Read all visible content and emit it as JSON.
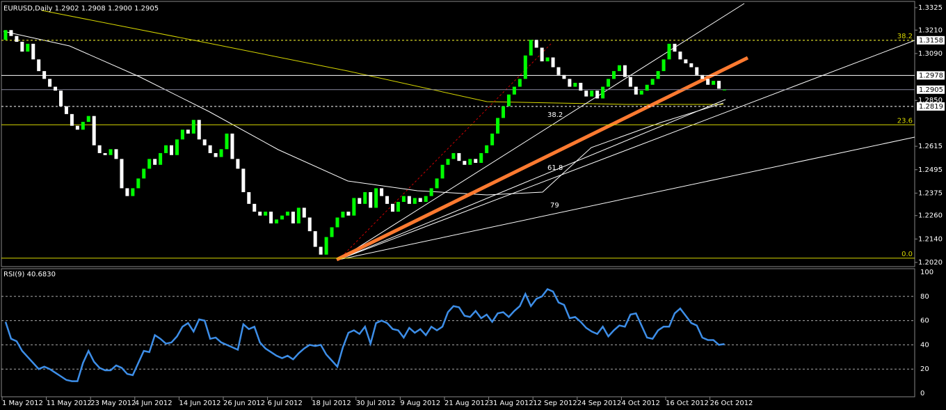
{
  "chart_data": {
    "type": "candlestick",
    "title": "EURUSD,Daily  1.2902 1.2908 1.2900 1.2905",
    "categories": [
      "1 May 2012",
      null,
      null,
      null,
      null,
      null,
      null,
      null,
      "11 May 2012",
      null,
      null,
      null,
      null,
      null,
      null,
      null,
      "23 May 2012",
      null,
      null,
      null,
      null,
      null,
      null,
      null,
      "4 Jun 2012",
      null,
      null,
      null,
      null,
      null,
      null,
      null,
      "14 Jun 2012",
      null,
      null,
      null,
      null,
      null,
      null,
      null,
      "26 Jun 2012",
      null,
      null,
      null,
      null,
      null,
      null,
      null,
      "6 Jul 2012",
      null,
      null,
      null,
      null,
      null,
      null,
      null,
      "18 Jul 2012",
      null,
      null,
      null,
      null,
      null,
      null,
      null,
      "30 Jul 2012",
      null,
      null,
      null,
      null,
      null,
      null,
      null,
      "9 Aug 2012",
      null,
      null,
      null,
      null,
      null,
      null,
      null,
      "21 Aug 2012",
      null,
      null,
      null,
      null,
      null,
      null,
      null,
      "31 Aug 2012",
      null,
      null,
      null,
      null,
      null,
      null,
      null,
      "12 Sep 2012",
      null,
      null,
      null,
      null,
      null,
      null,
      null,
      "24 Sep 2012",
      null,
      null,
      null,
      null,
      null,
      null,
      null,
      "4 Oct 2012",
      null,
      null,
      null,
      null,
      null,
      null,
      null,
      "16 Oct 2012",
      null,
      null,
      null,
      null,
      null,
      null,
      null,
      "26 Oct 2012",
      null,
      null
    ],
    "open": [
      1.316,
      1.321,
      1.318,
      1.315,
      1.31,
      1.314,
      1.306,
      1.3,
      1.296,
      1.292,
      1.29,
      1.282,
      1.278,
      1.272,
      1.27,
      1.274,
      1.277,
      1.262,
      1.258,
      1.257,
      1.26,
      1.255,
      1.24,
      1.236,
      1.24,
      1.245,
      1.25,
      1.255,
      1.252,
      1.258,
      1.262,
      1.257,
      1.265,
      1.27,
      1.268,
      1.275,
      1.265,
      1.262,
      1.258,
      1.256,
      1.26,
      1.268,
      1.255,
      1.25,
      1.238,
      1.232,
      1.228,
      1.226,
      1.228,
      1.222,
      1.224,
      1.226,
      1.228,
      1.222,
      1.23,
      1.225,
      1.218,
      1.21,
      1.206,
      1.215,
      1.22,
      1.225,
      1.228,
      1.226,
      1.235,
      1.232,
      1.238,
      1.23,
      1.24,
      1.236,
      1.232,
      1.228,
      1.233,
      1.236,
      1.232,
      1.235,
      1.233,
      1.236,
      1.24,
      1.245,
      1.252,
      1.255,
      1.258,
      1.254,
      1.252,
      1.255,
      1.253,
      1.258,
      1.262,
      1.268,
      1.276,
      1.282,
      1.288,
      1.292,
      1.296,
      1.308,
      1.316,
      1.312,
      1.305,
      1.307,
      1.302,
      1.298,
      1.296,
      1.292,
      1.294,
      1.29,
      1.287,
      1.29,
      1.286,
      1.292,
      1.296,
      1.3,
      1.303,
      1.297,
      1.292,
      1.288,
      1.29,
      1.293,
      1.296,
      1.3,
      1.306,
      1.314,
      1.31,
      1.306,
      1.304,
      1.302,
      1.298,
      1.296,
      1.293,
      1.295,
      1.2902
    ],
    "close": [
      1.321,
      1.318,
      1.315,
      1.31,
      1.314,
      1.306,
      1.3,
      1.296,
      1.292,
      1.29,
      1.282,
      1.278,
      1.272,
      1.27,
      1.274,
      1.277,
      1.262,
      1.258,
      1.257,
      1.26,
      1.255,
      1.24,
      1.236,
      1.24,
      1.245,
      1.25,
      1.255,
      1.252,
      1.258,
      1.262,
      1.257,
      1.265,
      1.27,
      1.268,
      1.275,
      1.265,
      1.262,
      1.258,
      1.256,
      1.26,
      1.268,
      1.255,
      1.25,
      1.238,
      1.232,
      1.228,
      1.226,
      1.228,
      1.222,
      1.224,
      1.226,
      1.228,
      1.222,
      1.23,
      1.225,
      1.218,
      1.21,
      1.206,
      1.215,
      1.22,
      1.225,
      1.228,
      1.226,
      1.235,
      1.232,
      1.238,
      1.23,
      1.24,
      1.236,
      1.232,
      1.228,
      1.233,
      1.236,
      1.232,
      1.235,
      1.233,
      1.236,
      1.24,
      1.245,
      1.252,
      1.255,
      1.258,
      1.254,
      1.252,
      1.255,
      1.253,
      1.258,
      1.262,
      1.268,
      1.276,
      1.282,
      1.288,
      1.292,
      1.296,
      1.308,
      1.316,
      1.312,
      1.305,
      1.307,
      1.302,
      1.298,
      1.296,
      1.292,
      1.294,
      1.29,
      1.287,
      1.29,
      1.286,
      1.292,
      1.296,
      1.3,
      1.303,
      1.297,
      1.292,
      1.288,
      1.29,
      1.293,
      1.296,
      1.3,
      1.306,
      1.314,
      1.31,
      1.306,
      1.304,
      1.302,
      1.298,
      1.296,
      1.293,
      1.295,
      1.291,
      1.2905
    ],
    "up_color": "#00ff00",
    "down_color": "#ffffff",
    "ylim": [
      1.202,
      1.3325
    ],
    "yticks": [
      1.3325,
      {
        "value": 1.321,
        "label": "1.3210"
      },
      {
        "value": 1.309,
        "label": "1.3090"
      },
      {
        "value": 1.285,
        "label": "1.2850"
      },
      1.2615,
      1.2495,
      1.2375,
      {
        "value": 1.226,
        "label": "1.2260"
      },
      {
        "value": 1.214,
        "label": "1.2140"
      },
      {
        "value": 1.202,
        "label": "1.2020"
      }
    ],
    "levels": [
      {
        "value": 1.3158,
        "color": "#ffffff",
        "dashed": true
      },
      {
        "value": 1.2978,
        "color": "#ffffff",
        "dashed": false
      },
      {
        "value": 1.2905,
        "color": "#8a8aa0",
        "dashed": false
      },
      {
        "value": 1.2819,
        "color": "#ffffff",
        "dashed": true
      }
    ],
    "fib_levels": [
      {
        "ratio": 38.2,
        "price": 1.3158
      },
      {
        "ratio": 23.6,
        "price": 1.2725
      },
      {
        "ratio": {
          "value": 0,
          "label": "0.0"
        },
        "price": 1.2042
      }
    ],
    "fan_labels": [
      38.2,
      61.8,
      79
    ],
    "rsi": {
      "title": "RSI(9) 40.6830",
      "color": "#3d8ee8",
      "ylim": [
        0,
        100
      ],
      "yticks": [
        100,
        80,
        60,
        40,
        20,
        0
      ],
      "values": [
        59,
        45,
        43,
        35,
        30,
        25,
        20,
        22,
        20,
        17,
        14,
        11,
        10,
        10,
        25,
        35,
        26,
        21,
        19,
        19,
        23,
        21,
        16,
        15,
        25,
        35,
        34,
        48,
        45,
        41,
        42,
        47,
        55,
        58,
        51,
        61,
        60,
        45,
        46,
        42,
        40,
        38,
        36,
        57,
        53,
        55,
        42,
        37,
        34,
        31,
        29,
        31,
        28,
        33,
        37,
        40,
        39,
        40,
        32,
        27,
        22,
        38,
        50,
        52,
        49,
        55,
        41,
        58,
        60,
        58,
        53,
        52,
        46,
        54,
        50,
        53,
        48,
        55,
        52,
        55,
        67,
        72,
        71,
        64,
        63,
        68,
        62,
        65,
        59,
        66,
        67,
        63,
        68,
        72,
        82,
        72,
        78,
        80,
        86,
        84,
        75,
        73,
        62,
        63,
        59,
        54,
        51,
        49,
        55,
        47,
        52,
        56,
        55,
        65,
        66,
        56,
        46,
        45,
        52,
        55,
        55,
        66,
        70,
        64,
        58,
        56,
        46,
        44,
        44,
        40,
        40.683
      ]
    }
  }
}
